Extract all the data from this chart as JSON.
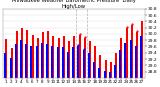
{
  "title": "Milwaukee Weather Barometric Pressure  Daily High/Low",
  "title_fontsize": 3.8,
  "ylabel_fontsize": 3.2,
  "xlabel_fontsize": 3.0,
  "bar_color_high": "#FF0000",
  "bar_color_low": "#0000FF",
  "background_color": "#FFFFFF",
  "plot_bg": "#FFFFFF",
  "ylim": [
    28.6,
    30.8
  ],
  "yticks": [
    28.8,
    29.0,
    29.2,
    29.4,
    29.6,
    29.8,
    30.0,
    30.2,
    30.4,
    30.6,
    30.8
  ],
  "days": [
    1,
    2,
    3,
    4,
    5,
    6,
    7,
    8,
    9,
    10,
    11,
    12,
    13,
    14,
    15,
    16,
    17,
    18,
    19,
    20,
    21,
    22,
    23,
    24,
    25,
    26,
    27
  ],
  "highs": [
    29.85,
    29.55,
    30.1,
    30.2,
    30.12,
    29.98,
    29.88,
    30.05,
    30.08,
    29.92,
    29.88,
    29.92,
    29.78,
    29.92,
    29.98,
    29.88,
    29.78,
    29.62,
    29.32,
    29.18,
    29.12,
    29.38,
    29.88,
    30.18,
    30.28,
    30.05,
    30.4
  ],
  "lows": [
    29.38,
    29.22,
    29.68,
    29.82,
    29.68,
    29.62,
    29.62,
    29.72,
    29.68,
    29.62,
    29.58,
    29.58,
    29.42,
    29.58,
    29.62,
    29.48,
    29.38,
    29.12,
    28.92,
    28.82,
    28.78,
    29.02,
    29.48,
    29.72,
    29.82,
    29.62,
    29.92
  ],
  "vline_positions": [
    13.5,
    15.5
  ],
  "dot_highs": [
    15,
    16,
    24,
    25,
    26
  ],
  "dot_lows": [
    15,
    16
  ],
  "bar_width": 0.42
}
